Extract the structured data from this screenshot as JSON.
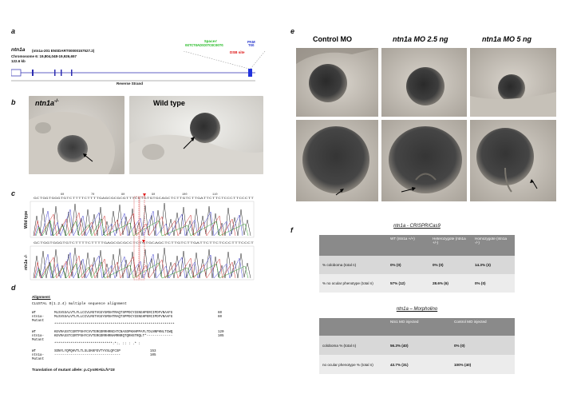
{
  "panels": {
    "a": {
      "letter": "a",
      "gene": "ntn1a",
      "transcript": "(ntn1a-201 ENSDART00000157527.2)",
      "chromosome": "Chromosome 6: 19,804,048-19,926,657",
      "size": "122.6 kb",
      "strand": "Reverse Strand",
      "spacer_label": "Spacer",
      "spacer_seq": "GGTCTGACGCGTCGCGGTG",
      "pam_label": "PAM",
      "pam_seq": "TGG",
      "dsb_label": "DSB site"
    },
    "b": {
      "letter": "b",
      "mutant_label": "ntn1a",
      "mutant_sup": "-/-",
      "wt_label": "Wild type"
    },
    "c": {
      "letter": "c",
      "wt_row_label": "Wild type",
      "mut_row_label": "ntn1a -/-",
      "wt_seq": "GCTGGTGGGTGTCTTTTCTTTTGAGCGCGCGTTTCCTGTGTGCAGCTCTTGTCTTGATTCTTCTCCCTTCCCTT",
      "mut_seq": "GCTGGTGGGTGTCTTTTCTTTTGAGCGCGCCTCTGTGCAGCTCTTGTCTTGATTCTTCTCCCTTTCCCT",
      "ticks": [
        "60",
        "70",
        "80",
        "90",
        "100",
        "110"
      ]
    },
    "d": {
      "letter": "d",
      "alignment_heading": "Alignment:",
      "clustal": "CLUSTAL O(1.2.4) multiple sequence alignment",
      "blocks": [
        {
          "rows": [
            {
              "name": "WT",
              "seq": "MLSVSSALVTLFLLCCVLRGTVGGYGMSHTRAQTSPPDCYIENGHPERCIPDFVNAAFG",
              "num": "60"
            },
            {
              "name": "ntn1a-Mutant",
              "seq": "MLSVSSALVTLFLLCCVLRGTVGGYGMSHTRAQTSPPDCYIENGHPERCIPDFVNAAFG",
              "num": "60"
            }
          ],
          "consensus": "************************************************************"
        },
        {
          "rows": [
            {
              "name": "WT",
              "seq": "KEVRASSTCGRTPSHYCVVTERGDRRHRNCHTCNASDPKHHPPAFLTDLNNPHNLTCWQ",
              "num": "120"
            },
            {
              "name": "ntn1a-Mutant",
              "seq": "KEVRASSTCGRTPSHYCVVTERGDRRHRNAMRNRQTQRHSTRQLT*-------------",
              "num": "105"
            }
          ],
          "consensus": "*****************************:*:. :: : .*  :"
        },
        {
          "rows": [
            {
              "name": "WT",
              "seq": "SDNYLYQPQHVTLTLSLGKKFEVTYVSLQFCSP",
              "num": "153"
            },
            {
              "name": "ntn1a-Mutant",
              "seq": "---------------------------------",
              "num": "105"
            }
          ],
          "consensus": ""
        }
      ],
      "translation_label": "Translation of mutant allele:",
      "translation_value": "p.Cys90Ala.fs*15"
    },
    "e": {
      "letter": "e",
      "columns": [
        "Control MO",
        "ntn1a MO 2.5 ng",
        "ntn1a MO 5 ng"
      ]
    },
    "f": {
      "letter": "f",
      "crispr_title": "ntn1a - CRISPR/Cas9",
      "crispr_headers": [
        "",
        "WT (ntn1a +/+)",
        "Heterozygote (ntn1a +/-)",
        "Homozygote (ntn1a -/-)"
      ],
      "crispr_rows": [
        [
          "% coloboma (total n)",
          "0% (0)",
          "0% (0)",
          "14.3% (3)"
        ],
        [
          "% no ocular phenotype (total n)",
          "57% (12)",
          "28.6% (6)",
          "0% (0)"
        ]
      ],
      "morpholino_title": "ntn1a – Morpholino",
      "morpholino_headers": [
        "",
        "Ntn1 MO injected",
        "Control MO injected"
      ],
      "morpholino_rows": [
        [
          "coloboma % (total n)",
          "56.3% (40)",
          "0% (0)"
        ],
        [
          "no ocular phenotype % (total n)",
          "43.7% (31)",
          "100% (40)"
        ]
      ]
    }
  }
}
